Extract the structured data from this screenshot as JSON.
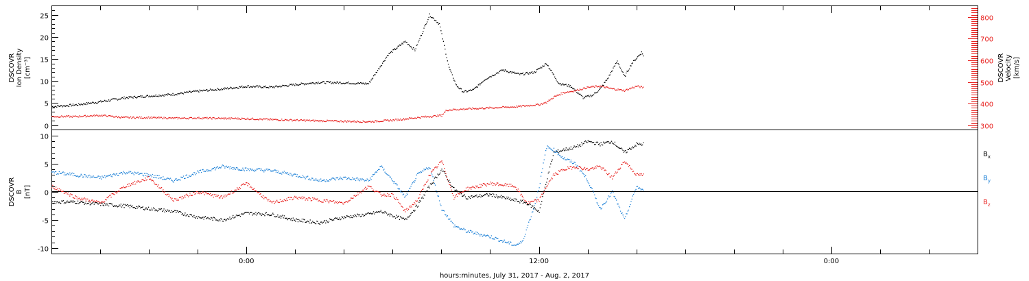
{
  "xaxis": {
    "title": "hours:minutes, July 31, 2017 - Aug.  2, 2017",
    "tick_labels": [
      {
        "label": "0:00",
        "hour": 24
      },
      {
        "label": "12:00",
        "hour": 36
      },
      {
        "label": "0:00",
        "hour": 48
      }
    ]
  },
  "chart_data": [
    {
      "type": "scatter",
      "panel": "top",
      "ylabel_left": [
        "DSCOVR",
        "Ion Density",
        "[cm⁻³]"
      ],
      "ylabel_right": [
        "DSCOVR",
        "Velocity",
        "[km/s]"
      ],
      "x_units": "hours since July 31, 2017 00:00",
      "xlim": [
        16,
        54
      ],
      "ylim_left": [
        -1,
        27
      ],
      "ylim_right": [
        280,
        850
      ],
      "y_ticks_left": [
        "0",
        "5",
        "10",
        "15",
        "20",
        "25"
      ],
      "y_ticks_right": [
        "300",
        "400",
        "500",
        "600",
        "700",
        "800"
      ],
      "series": [
        {
          "name": "Ion Density",
          "axis": "left",
          "color": "#000000",
          "x": [
            16.0,
            17.0,
            18.0,
            19.0,
            20.0,
            21.0,
            22.0,
            23.0,
            24.0,
            25.0,
            26.0,
            27.0,
            28.0,
            29.0,
            29.8,
            30.5,
            30.9,
            31.5,
            31.9,
            32.3,
            32.6,
            32.9,
            33.3,
            33.8,
            34.5,
            35.2,
            35.8,
            36.3,
            36.8,
            37.3,
            37.8,
            38.2,
            38.5,
            38.8,
            39.2,
            39.5,
            39.8,
            40.2,
            40.3
          ],
          "y": [
            4.2,
            4.6,
            5.3,
            6.2,
            6.6,
            7.0,
            7.7,
            8.2,
            8.8,
            8.6,
            9.2,
            9.7,
            9.6,
            9.4,
            16.0,
            19.0,
            17.0,
            25.0,
            23.0,
            13.0,
            9.0,
            7.5,
            8.0,
            10.5,
            12.5,
            11.5,
            12.0,
            14.0,
            9.5,
            8.8,
            6.2,
            6.8,
            8.2,
            10.5,
            14.5,
            11.0,
            14.0,
            16.5,
            15.5
          ]
        },
        {
          "name": "Velocity",
          "axis": "right",
          "color": "#e8201e",
          "x": [
            16.0,
            17.0,
            18.0,
            19.0,
            20.0,
            21.0,
            22.0,
            23.0,
            24.0,
            25.0,
            26.0,
            27.0,
            28.0,
            29.0,
            30.0,
            31.0,
            32.0,
            32.2,
            33.0,
            34.0,
            35.0,
            36.0,
            36.3,
            36.6,
            37.0,
            37.5,
            38.0,
            38.5,
            39.0,
            39.5,
            40.0,
            40.3
          ],
          "y": [
            340,
            340,
            345,
            335,
            335,
            332,
            333,
            331,
            330,
            326,
            323,
            320,
            318,
            316,
            323,
            335,
            345,
            370,
            375,
            380,
            385,
            395,
            405,
            430,
            450,
            460,
            475,
            480,
            468,
            460,
            480,
            473
          ]
        }
      ]
    },
    {
      "type": "scatter",
      "panel": "bottom",
      "ylabel_left": [
        "DSCOVR",
        "B",
        "[nT]"
      ],
      "x_units": "hours since July 31, 2017 00:00",
      "xlim": [
        16,
        54
      ],
      "ylim": [
        -11,
        11
      ],
      "y_ticks": [
        "10",
        "5",
        "0",
        "-5",
        "-10"
      ],
      "zero_line": true,
      "series": [
        {
          "name": "B",
          "subscript": "x",
          "color": "#000000",
          "x": [
            16.0,
            17.0,
            18.0,
            19.0,
            20.0,
            21.0,
            22.0,
            23.0,
            24.0,
            25.0,
            26.0,
            27.0,
            28.0,
            29.0,
            29.5,
            30.5,
            31.0,
            31.5,
            32.0,
            32.5,
            33.0,
            34.0,
            35.0,
            35.5,
            36.0,
            36.3,
            36.6,
            37.0,
            37.5,
            38.0,
            38.5,
            39.0,
            39.5,
            40.0,
            40.3
          ],
          "y": [
            -1.8,
            -1.8,
            -2.2,
            -2.5,
            -3.0,
            -3.5,
            -4.5,
            -5.0,
            -3.8,
            -4.0,
            -5.0,
            -5.5,
            -4.5,
            -4.0,
            -3.5,
            -5.0,
            -2.5,
            1.0,
            4.0,
            0.5,
            -1.0,
            -0.5,
            -1.5,
            -2.0,
            -3.5,
            2.0,
            7.0,
            7.5,
            8.0,
            9.0,
            8.5,
            9.0,
            7.0,
            8.5,
            8.5
          ]
        },
        {
          "name": "B",
          "subscript": "y",
          "color": "#1a7fd6",
          "x": [
            16.0,
            17.0,
            18.0,
            19.0,
            20.0,
            21.0,
            22.0,
            23.0,
            24.0,
            25.0,
            26.0,
            27.0,
            28.0,
            29.0,
            29.5,
            30.0,
            30.5,
            31.0,
            31.5,
            32.0,
            32.5,
            33.0,
            34.0,
            35.0,
            35.3,
            35.8,
            36.0,
            36.3,
            36.6,
            37.0,
            37.5,
            38.0,
            38.5,
            39.0,
            39.5,
            40.0,
            40.3
          ],
          "y": [
            3.5,
            3.0,
            2.5,
            3.5,
            3.0,
            2.0,
            3.5,
            4.5,
            4.0,
            3.8,
            3.0,
            2.0,
            2.5,
            2.0,
            4.5,
            2.0,
            -1.0,
            3.0,
            4.5,
            -3.0,
            -6.0,
            -7.0,
            -8.0,
            -9.5,
            -9.0,
            -2.5,
            1.0,
            8.0,
            7.5,
            6.0,
            5.0,
            2.0,
            -3.0,
            0.0,
            -5.0,
            1.0,
            0.0
          ]
        },
        {
          "name": "B",
          "subscript": "z",
          "color": "#e8201e",
          "x": [
            16.0,
            17.0,
            18.0,
            19.0,
            20.0,
            21.0,
            22.0,
            23.0,
            24.0,
            25.0,
            26.0,
            27.0,
            28.0,
            29.0,
            29.5,
            30.0,
            30.5,
            31.0,
            31.5,
            32.0,
            32.5,
            33.0,
            34.0,
            35.0,
            35.5,
            36.0,
            36.3,
            36.6,
            37.0,
            37.5,
            38.0,
            38.5,
            39.0,
            39.5,
            40.0,
            40.3
          ],
          "y": [
            1.0,
            -1.0,
            -2.0,
            1.0,
            2.5,
            -1.5,
            0.0,
            -1.0,
            1.5,
            -2.0,
            -1.0,
            -1.5,
            -2.0,
            1.0,
            -0.5,
            -0.5,
            -3.5,
            -1.5,
            3.0,
            5.5,
            -1.0,
            0.5,
            1.5,
            1.0,
            -2.0,
            -1.5,
            1.0,
            3.0,
            4.0,
            4.5,
            4.0,
            4.5,
            2.5,
            5.5,
            3.0,
            3.0
          ]
        }
      ]
    }
  ]
}
